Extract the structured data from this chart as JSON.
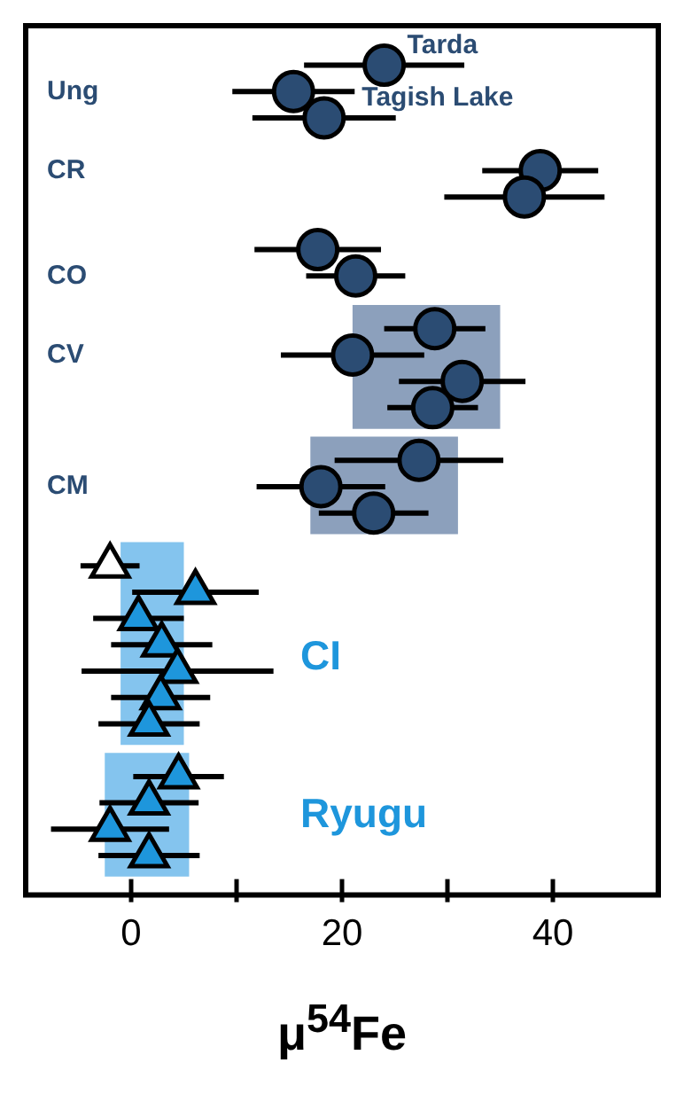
{
  "chart_data": {
    "type": "scatter",
    "orientation": "horizontal",
    "xlabel": "μ$^{54}$Fe",
    "xlim": [
      -10,
      50
    ],
    "xticks": [
      0,
      {
        "value": 10,
        "label": null
      },
      20,
      {
        "value": 30,
        "label": null
      },
      40
    ],
    "categories": [
      null,
      "Ung",
      null,
      null,
      "CR",
      null,
      null,
      null,
      "CO",
      null,
      null,
      "CV",
      null,
      null,
      null,
      null,
      "CM",
      null,
      null,
      null,
      null,
      null,
      null,
      null,
      null,
      null,
      null,
      null,
      null,
      null,
      null
    ],
    "series": [
      {
        "color": "#2b4c73",
        "marker": "circle",
        "values": [
          24.0,
          15.4,
          18.3,
          null,
          38.8,
          37.3,
          null,
          17.7,
          21.3,
          null,
          28.8,
          21.0,
          31.4,
          28.6,
          null,
          27.3,
          18.0,
          23.0,
          null,
          null,
          null,
          null,
          null,
          null,
          null,
          null,
          null,
          null,
          null,
          null,
          null
        ],
        "errors": [
          7.6,
          5.8,
          6.8,
          null,
          5.5,
          7.6,
          null,
          6.0,
          4.7,
          null,
          4.8,
          6.8,
          6.0,
          4.3,
          null,
          8.0,
          6.1,
          5.2,
          null,
          null,
          null,
          null,
          null,
          null,
          null,
          null,
          null,
          null,
          null,
          null,
          null
        ]
      },
      {
        "color": "#ffffff",
        "marker": "triangle",
        "values": [
          null,
          null,
          null,
          null,
          null,
          null,
          null,
          null,
          null,
          null,
          null,
          null,
          null,
          null,
          null,
          null,
          null,
          null,
          null,
          -2.0,
          null,
          null,
          null,
          null,
          null,
          null,
          null,
          null,
          null,
          null,
          null
        ],
        "errors": [
          null,
          null,
          null,
          null,
          null,
          null,
          null,
          null,
          null,
          null,
          null,
          null,
          null,
          null,
          null,
          null,
          null,
          null,
          null,
          2.8,
          null,
          null,
          null,
          null,
          null,
          null,
          null,
          null,
          null,
          null,
          null
        ]
      },
      {
        "name": "CI",
        "color": "#1e96dc",
        "marker": "triangle",
        "values": [
          null,
          null,
          null,
          null,
          null,
          null,
          null,
          null,
          null,
          null,
          null,
          null,
          null,
          null,
          null,
          null,
          null,
          null,
          null,
          null,
          6.1,
          0.7,
          2.9,
          4.4,
          2.8,
          1.7,
          null,
          null,
          null,
          null,
          null
        ],
        "errors": [
          null,
          null,
          null,
          null,
          null,
          null,
          null,
          null,
          null,
          null,
          null,
          null,
          null,
          null,
          null,
          null,
          null,
          null,
          null,
          null,
          6.0,
          4.3,
          4.8,
          9.1,
          4.7,
          4.8,
          null,
          null,
          null,
          null,
          null
        ]
      },
      {
        "name": "Ryugu",
        "color": "#1e96dc",
        "marker": "triangle",
        "values": [
          null,
          null,
          null,
          null,
          null,
          null,
          null,
          null,
          null,
          null,
          null,
          null,
          null,
          null,
          null,
          null,
          null,
          null,
          null,
          null,
          null,
          null,
          null,
          null,
          null,
          null,
          null,
          4.5,
          1.7,
          -2.0,
          1.7
        ],
        "errors": [
          null,
          null,
          null,
          null,
          null,
          null,
          null,
          null,
          null,
          null,
          null,
          null,
          null,
          null,
          null,
          null,
          null,
          null,
          null,
          null,
          null,
          null,
          null,
          null,
          null,
          null,
          null,
          4.3,
          4.7,
          5.6,
          4.8
        ]
      }
    ],
    "bands": [
      {
        "axis": "x",
        "from": 21,
        "to": 35,
        "color": "#8ca0bc"
      },
      {
        "axis": "x",
        "from": 17,
        "to": 31,
        "color": "#8ca0bc"
      },
      {
        "axis": "x",
        "from": -1,
        "to": 5,
        "color": "#84c4ee"
      },
      {
        "axis": "x",
        "from": -2.5,
        "to": 5.5,
        "color": "#84c4ee"
      }
    ],
    "annotations": [
      {
        "text": "Tarda",
        "x": 24.0
      },
      {
        "text": "Tagish Lake",
        "x": 18.3
      }
    ]
  }
}
